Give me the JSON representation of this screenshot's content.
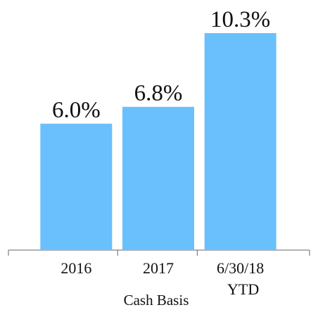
{
  "chart_data": {
    "type": "bar",
    "x_label": "Cash Basis",
    "categories": [
      "2016",
      "2017",
      "6/30/18 YTD"
    ],
    "values": [
      6.0,
      6.8,
      10.3
    ],
    "value_labels": [
      "6.0%",
      "6.8%",
      "10.3%"
    ],
    "color": "#6ac0fc"
  }
}
